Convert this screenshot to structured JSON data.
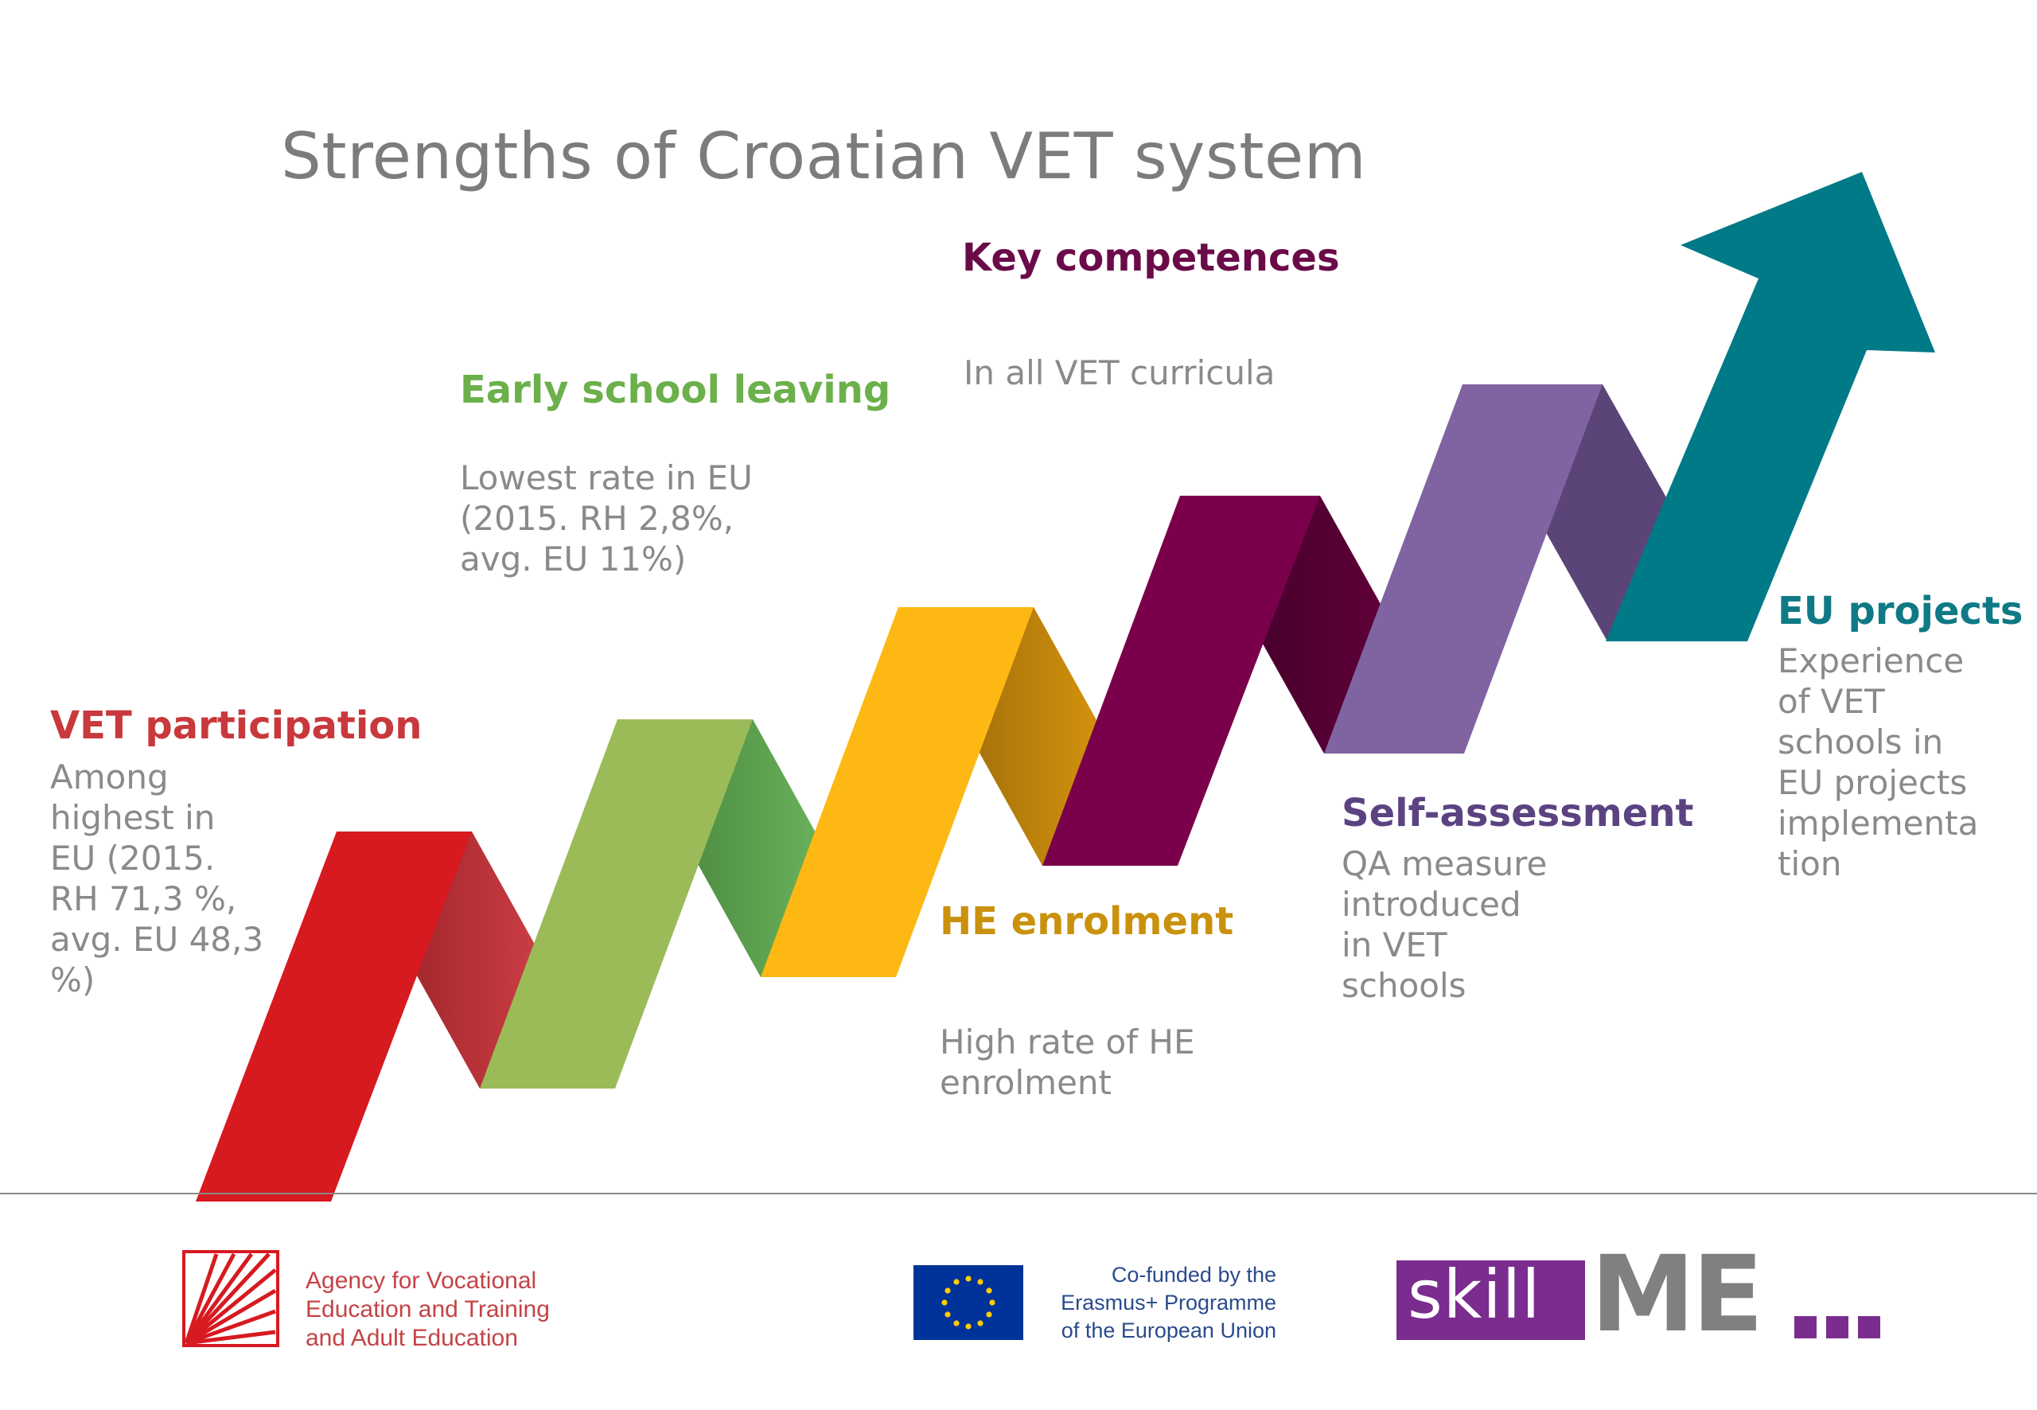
{
  "title": "Strengths of Croatian VET system",
  "steps": [
    {
      "heading": "VET participation",
      "text": "Among\nhighest in\nEU (2015.\nRH 71,3 %,\navg. EU 48,3\n%)",
      "color": "#c8383c"
    },
    {
      "heading": "Early school leaving",
      "text": "Lowest rate in EU\n(2015. RH 2,8%,\navg. EU 11%)",
      "color": "#6cb04b"
    },
    {
      "heading": "HE enrolment",
      "text": "High rate of HE\nenrolment",
      "color": "#c9910c"
    },
    {
      "heading": "Key competences",
      "text": "In all VET curricula",
      "color": "#6a0b48"
    },
    {
      "heading": "Self-assessment",
      "text": "QA measure\nintroduced\nin VET\nschools",
      "color": "#5b4382"
    },
    {
      "heading": "EU projects",
      "text": "Experience\nof VET\nschools in\nEU projects\nimplementa\ntion",
      "color": "#0f7a86"
    }
  ],
  "footer": {
    "agency": "Agency for Vocational\nEducation and Training\nand Adult Education",
    "erasmus": "Co-funded by the\nErasmus+ Programme\nof the European Union",
    "skill": "skill",
    "me": "ME"
  },
  "colors": {
    "red": "#d71920",
    "green": "#9bbb59",
    "yellow": "#fdb813",
    "plum": "#7b004b",
    "purple": "#8064a2",
    "teal": "#007a87",
    "eu_blue": "#003399",
    "eu_star": "#ffcc00",
    "skill_purple": "#7b2c8f"
  }
}
